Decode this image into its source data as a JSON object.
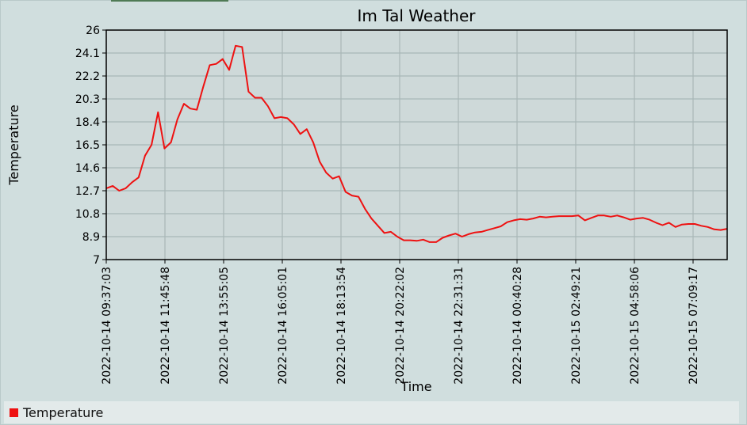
{
  "chart_data": {
    "type": "line",
    "title": "Im Tal Weather",
    "xlabel": "Time",
    "ylabel": "Temperature",
    "ylim": [
      7,
      26
    ],
    "yticks": [
      "7",
      "8.9",
      "10.8",
      "12.7",
      "14.6",
      "16.5",
      "18.4",
      "20.3",
      "22.2",
      "24.1",
      "26"
    ],
    "xticks": [
      "2022-10-14 09:37:03",
      "2022-10-14 11:45:48",
      "2022-10-14 13:55:05",
      "2022-10-14 16:05:01",
      "2022-10-14 18:13:54",
      "2022-10-14 20:22:02",
      "2022-10-14 22:31:31",
      "2022-10-14 00:40:28",
      "2022-10-15 02:49:21",
      "2022-10-15 04:58:06",
      "2022-10-15 07:09:17"
    ],
    "grid": true,
    "legend": "bottom-left",
    "series": [
      {
        "name": "Temperature",
        "color": "#ee1111",
        "values": [
          12.9,
          13.1,
          12.7,
          12.9,
          13.4,
          13.8,
          15.6,
          16.5,
          19.2,
          16.2,
          16.7,
          18.6,
          19.9,
          19.5,
          19.4,
          21.3,
          23.1,
          23.2,
          23.6,
          22.7,
          24.7,
          24.6,
          20.9,
          20.4,
          20.4,
          19.7,
          18.7,
          18.8,
          18.7,
          18.2,
          17.4,
          17.8,
          16.7,
          15.1,
          14.2,
          13.7,
          13.9,
          12.6,
          12.3,
          12.2,
          11.2,
          10.4,
          9.8,
          9.2,
          9.3,
          8.9,
          8.6,
          8.6,
          8.55,
          8.65,
          8.45,
          8.45,
          8.8,
          9.0,
          9.15,
          8.9,
          9.1,
          9.25,
          9.3,
          9.45,
          9.6,
          9.75,
          10.1,
          10.25,
          10.35,
          10.3,
          10.4,
          10.55,
          10.5,
          10.55,
          10.6,
          10.6,
          10.6,
          10.65,
          10.25,
          10.45,
          10.65,
          10.65,
          10.55,
          10.65,
          10.5,
          10.3,
          10.4,
          10.45,
          10.3,
          10.05,
          9.85,
          10.05,
          9.7,
          9.9,
          9.95,
          9.95,
          9.8,
          9.7,
          9.5,
          9.45,
          9.55
        ]
      }
    ]
  }
}
